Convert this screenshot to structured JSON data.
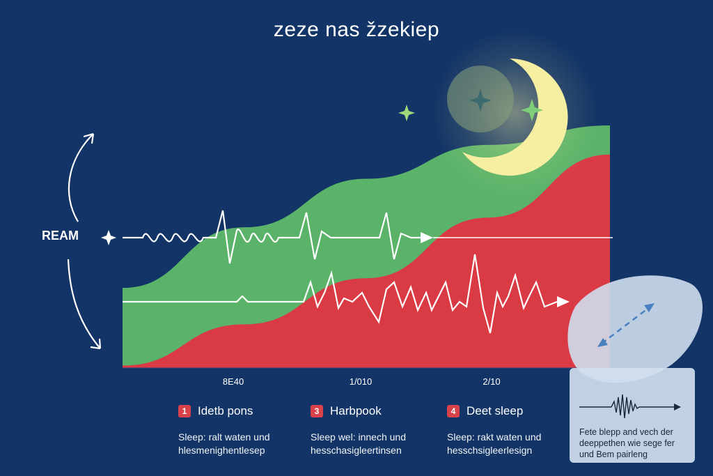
{
  "title": "zeze nas žzekiep",
  "side_label": "REAM",
  "legend": [
    {
      "number": "1",
      "name": "Idetb pons",
      "desc": "Sleep: ralt waten und hlesmenighentlesep"
    },
    {
      "number": "3",
      "name": "Harbpook",
      "desc": "Sleep wel: innech und hesschasigleertinsen"
    },
    {
      "number": "4",
      "name": "Deet sleep",
      "desc": "Sleep: rakt waten und hesschsigleerlesign"
    }
  ],
  "note": {
    "text": "Fete blepp and vech der deeppethen wie sege fer und Bem pairleng"
  },
  "colors": {
    "background": "#123466",
    "green_area": "#5bb36a",
    "red_area": "#d93a44",
    "moon": "#f6eea0",
    "star": "#9fd97a",
    "badge": "#d9424a"
  },
  "icons": [
    "moon-icon",
    "sparkle-icon",
    "cycle-arrow-icon",
    "double-arrow-icon",
    "waveform-icon"
  ],
  "chart_data": {
    "type": "area",
    "x_ticks": [
      "8E40",
      "1/010",
      "2/10"
    ],
    "series": [
      {
        "values": [
          0.33,
          0.58,
          0.78,
          0.92,
          1.0
        ]
      },
      {
        "values": [
          0.01,
          0.18,
          0.37,
          0.62,
          0.88
        ]
      }
    ],
    "ylim": [
      0,
      1
    ],
    "grid": false,
    "legend_position": "bottom"
  }
}
